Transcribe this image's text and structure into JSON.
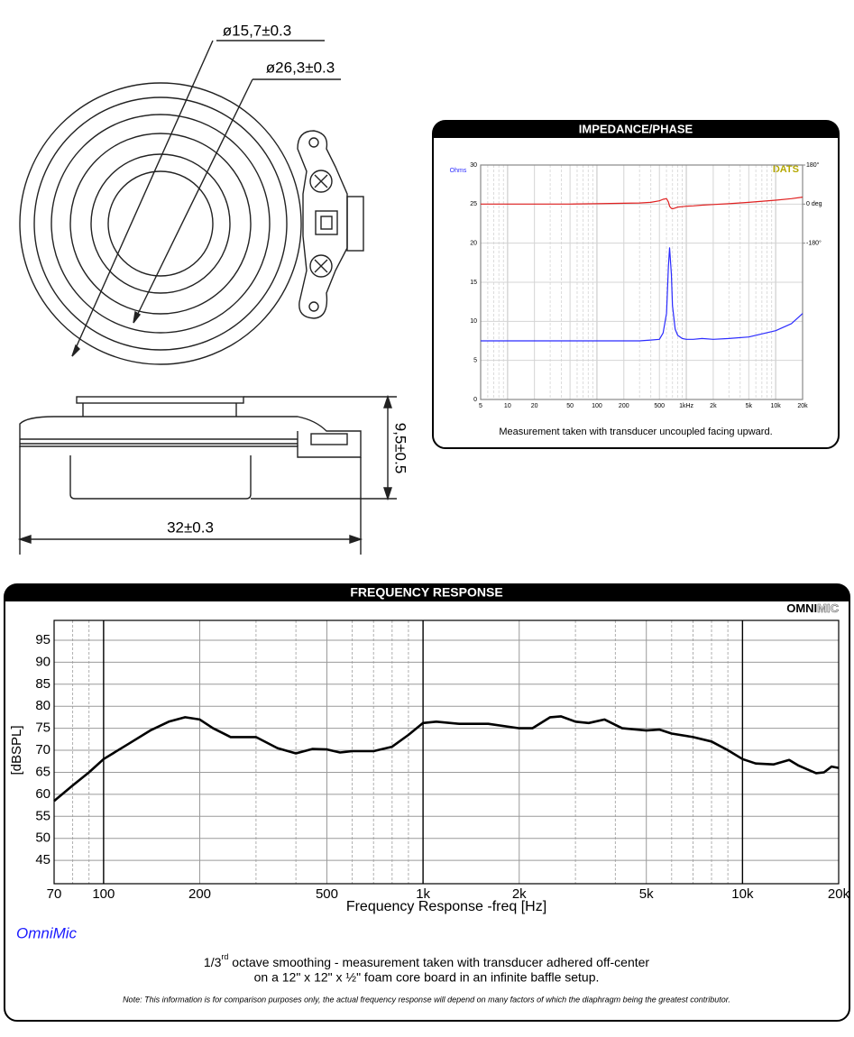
{
  "drawing": {
    "dim_inner": "ø15,7±0.3",
    "dim_outer": "ø26,3±0.3",
    "dim_height": "9,5±0.5",
    "dim_width": "32±0.3"
  },
  "chart_data": [
    {
      "type": "line",
      "title": "IMPEDANCE/PHASE",
      "y_label": "Ohms",
      "brand": "DATS",
      "caption": "Measurement taken with transducer uncoupled facing upward.",
      "x_scale": "log",
      "grid": true,
      "x": [
        5,
        10,
        20,
        50,
        100,
        200,
        300,
        400,
        500,
        550,
        600,
        630,
        650,
        680,
        700,
        750,
        800,
        900,
        1000,
        1200,
        1500,
        2000,
        3000,
        5000,
        10000,
        15000,
        20000
      ],
      "xlim": [
        5,
        20000
      ],
      "xticks": [
        5,
        10,
        20,
        50,
        100,
        200,
        500,
        {
          "value": 1000,
          "label": "1kHz"
        },
        {
          "value": 2000,
          "label": "2k"
        },
        {
          "value": 5000,
          "label": "5k"
        },
        {
          "value": 10000,
          "label": "10k"
        },
        {
          "value": 20000,
          "label": "20k"
        }
      ],
      "minor_xticks": [
        6,
        7,
        8,
        9,
        30,
        40,
        60,
        70,
        80,
        90,
        300,
        400,
        600,
        700,
        800,
        900,
        3000,
        4000,
        6000,
        7000,
        8000,
        9000
      ],
      "ylim": [
        0,
        30
      ],
      "yticks": [
        0,
        5,
        10,
        15,
        20,
        25,
        30
      ],
      "y2lim": [
        -900,
        180
      ],
      "y2ticks": [
        {
          "value": 180,
          "label": "180°"
        },
        {
          "value": 0,
          "label": "0 deg"
        },
        {
          "value": -180,
          "label": "-180°"
        }
      ],
      "series": [
        {
          "color": "#2b2bff",
          "values": [
            7.5,
            7.5,
            7.5,
            7.5,
            7.5,
            7.5,
            7.5,
            7.6,
            7.7,
            8.5,
            11,
            17,
            19.4,
            16,
            12,
            9,
            8.2,
            7.8,
            7.7,
            7.7,
            7.8,
            7.7,
            7.8,
            8.0,
            8.8,
            9.7,
            11.0
          ]
        },
        {
          "color": "#e02020",
          "axis": "y2",
          "values": [
            0,
            0,
            0,
            0,
            2,
            4,
            5,
            8,
            15,
            22,
            25,
            10,
            -10,
            -20,
            -22,
            -18,
            -14,
            -12,
            -10,
            -8,
            -5,
            -2,
            2,
            8,
            18,
            25,
            32
          ]
        }
      ]
    },
    {
      "type": "line",
      "title": "FREQUENCY RESPONSE",
      "brand": [
        "OMNI",
        "MIC"
      ],
      "y_label": "[dBSPL]",
      "x_label": "Frequency Response -freq [Hz]",
      "source": "OmniMic",
      "caption": [
        "1/3",
        "rd",
        " octave smoothing - measurement taken with transducer adhered off-center",
        "on a 12\" x 12\" x ½\" foam core board in an infinite baffle setup."
      ],
      "note": "Note: This information is for comparison purposes only, the actual frequency response will depend on many factors of which the diaphragm being the greatest contributor.",
      "x_scale": "log",
      "grid": true,
      "x": [
        70,
        80,
        90,
        100,
        120,
        140,
        160,
        180,
        200,
        220,
        250,
        300,
        350,
        400,
        450,
        500,
        550,
        600,
        700,
        800,
        900,
        1000,
        1100,
        1300,
        1600,
        2000,
        2200,
        2500,
        2700,
        3000,
        3300,
        3700,
        4200,
        5000,
        5500,
        6000,
        7000,
        8000,
        9000,
        10000,
        11000,
        12500,
        14000,
        15000,
        17000,
        18000,
        19000,
        20000
      ],
      "xlim": [
        70,
        20000
      ],
      "xticks": [
        70,
        100,
        200,
        500,
        {
          "value": 1000,
          "label": "1k"
        },
        {
          "value": 2000,
          "label": "2k"
        },
        {
          "value": 5000,
          "label": "5k"
        },
        {
          "value": 10000,
          "label": "10k"
        },
        {
          "value": 20000,
          "label": "20k"
        }
      ],
      "minor_xticks": [
        80,
        90,
        300,
        400,
        600,
        700,
        800,
        900,
        3000,
        4000,
        6000,
        7000,
        8000,
        9000
      ],
      "ylim": [
        39.7,
        99.5
      ],
      "yticks": [
        45,
        50,
        55,
        60,
        65,
        70,
        75,
        80,
        85,
        90,
        95
      ],
      "series": [
        {
          "color": "#000000",
          "values": [
            58.5,
            62,
            65,
            68,
            71.5,
            74.5,
            76.5,
            77.5,
            77,
            75,
            73,
            73,
            70.5,
            69.3,
            70.3,
            70.2,
            69.5,
            69.8,
            69.8,
            70.8,
            73.5,
            76.2,
            76.5,
            76,
            76,
            75,
            75,
            77.5,
            77.7,
            76.5,
            76.2,
            77,
            75,
            74.5,
            74.7,
            73.8,
            73,
            72,
            70,
            68,
            67,
            66.8,
            67.8,
            66.5,
            64.8,
            65,
            66.3,
            66
          ]
        }
      ]
    }
  ]
}
